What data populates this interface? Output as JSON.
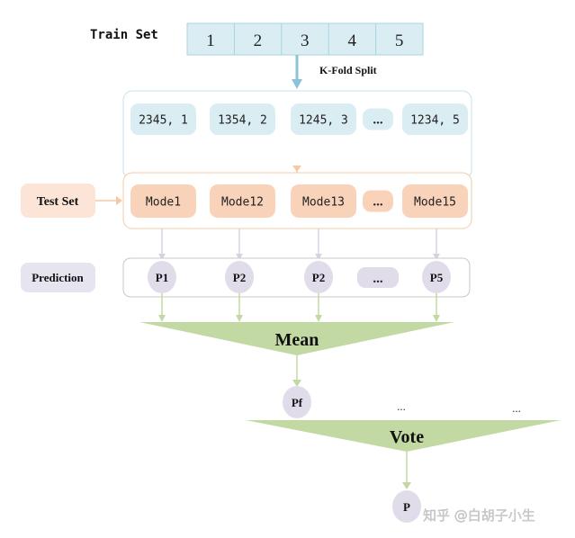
{
  "train_set": {
    "label": "Train Set",
    "folds": [
      "1",
      "2",
      "3",
      "4",
      "5"
    ]
  },
  "split_label": "K-Fold Split",
  "splits": [
    "2345, 1",
    "1354, 2",
    "1245, 3",
    "...",
    "1234, 5"
  ],
  "test_set_label": "Test Set",
  "models": [
    "Mode1",
    "Mode12",
    "Mode13",
    "...",
    "Mode15"
  ],
  "prediction_label": "Prediction",
  "predictions": [
    "P1",
    "P2",
    "P2",
    "...",
    "P5"
  ],
  "mean_label": "Mean",
  "pf_label": "Pf",
  "other_dots": [
    "...",
    "..."
  ],
  "vote_label": "Vote",
  "final_label": "P",
  "watermark": "知乎 @白胡子小生",
  "colors": {
    "blue_fill": "#daedf3",
    "blue_stroke": "#a9d3e0",
    "orange_fill": "#f9d3b9",
    "orange_stroke": "#f6c9a6",
    "purple_fill": "#e0dcea",
    "green": "#c3d9a3",
    "gray_stroke": "#c8c8c8"
  }
}
